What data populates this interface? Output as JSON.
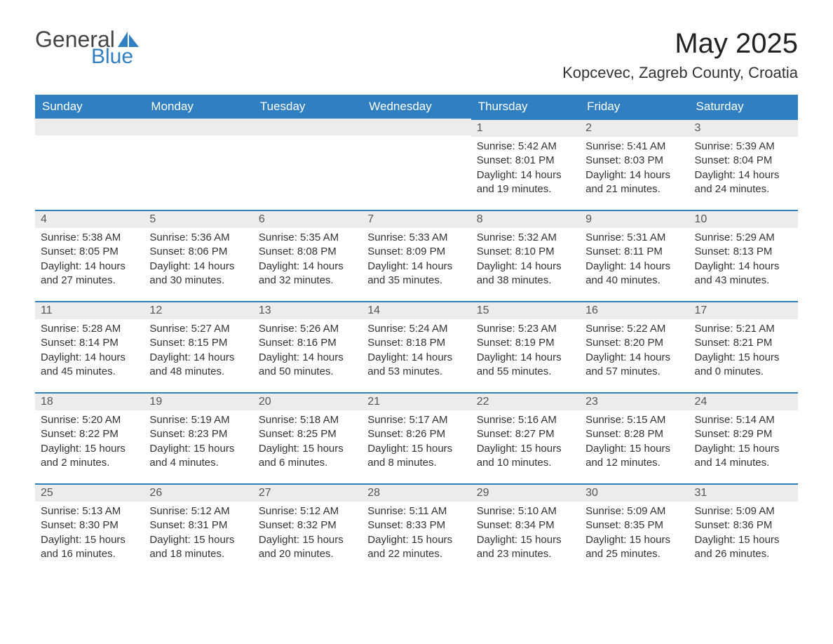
{
  "logo": {
    "word1": "General",
    "word2": "Blue"
  },
  "title": "May 2025",
  "location": "Kopcevec, Zagreb County, Croatia",
  "colors": {
    "header_bg": "#2f7fc1",
    "header_text": "#ffffff",
    "daynum_bg": "#ececec",
    "daynum_border": "#2f7fc1",
    "body_text": "#333333",
    "logo_blue": "#2f7fc1",
    "logo_gray": "#444444"
  },
  "typography": {
    "title_fontsize": 40,
    "location_fontsize": 22,
    "header_fontsize": 17,
    "daynum_fontsize": 16,
    "body_fontsize": 15
  },
  "days_of_week": [
    "Sunday",
    "Monday",
    "Tuesday",
    "Wednesday",
    "Thursday",
    "Friday",
    "Saturday"
  ],
  "weeks": [
    [
      null,
      null,
      null,
      null,
      {
        "n": "1",
        "sr": "5:42 AM",
        "ss": "8:01 PM",
        "dl": "14 hours and 19 minutes."
      },
      {
        "n": "2",
        "sr": "5:41 AM",
        "ss": "8:03 PM",
        "dl": "14 hours and 21 minutes."
      },
      {
        "n": "3",
        "sr": "5:39 AM",
        "ss": "8:04 PM",
        "dl": "14 hours and 24 minutes."
      }
    ],
    [
      {
        "n": "4",
        "sr": "5:38 AM",
        "ss": "8:05 PM",
        "dl": "14 hours and 27 minutes."
      },
      {
        "n": "5",
        "sr": "5:36 AM",
        "ss": "8:06 PM",
        "dl": "14 hours and 30 minutes."
      },
      {
        "n": "6",
        "sr": "5:35 AM",
        "ss": "8:08 PM",
        "dl": "14 hours and 32 minutes."
      },
      {
        "n": "7",
        "sr": "5:33 AM",
        "ss": "8:09 PM",
        "dl": "14 hours and 35 minutes."
      },
      {
        "n": "8",
        "sr": "5:32 AM",
        "ss": "8:10 PM",
        "dl": "14 hours and 38 minutes."
      },
      {
        "n": "9",
        "sr": "5:31 AM",
        "ss": "8:11 PM",
        "dl": "14 hours and 40 minutes."
      },
      {
        "n": "10",
        "sr": "5:29 AM",
        "ss": "8:13 PM",
        "dl": "14 hours and 43 minutes."
      }
    ],
    [
      {
        "n": "11",
        "sr": "5:28 AM",
        "ss": "8:14 PM",
        "dl": "14 hours and 45 minutes."
      },
      {
        "n": "12",
        "sr": "5:27 AM",
        "ss": "8:15 PM",
        "dl": "14 hours and 48 minutes."
      },
      {
        "n": "13",
        "sr": "5:26 AM",
        "ss": "8:16 PM",
        "dl": "14 hours and 50 minutes."
      },
      {
        "n": "14",
        "sr": "5:24 AM",
        "ss": "8:18 PM",
        "dl": "14 hours and 53 minutes."
      },
      {
        "n": "15",
        "sr": "5:23 AM",
        "ss": "8:19 PM",
        "dl": "14 hours and 55 minutes."
      },
      {
        "n": "16",
        "sr": "5:22 AM",
        "ss": "8:20 PM",
        "dl": "14 hours and 57 minutes."
      },
      {
        "n": "17",
        "sr": "5:21 AM",
        "ss": "8:21 PM",
        "dl": "15 hours and 0 minutes."
      }
    ],
    [
      {
        "n": "18",
        "sr": "5:20 AM",
        "ss": "8:22 PM",
        "dl": "15 hours and 2 minutes."
      },
      {
        "n": "19",
        "sr": "5:19 AM",
        "ss": "8:23 PM",
        "dl": "15 hours and 4 minutes."
      },
      {
        "n": "20",
        "sr": "5:18 AM",
        "ss": "8:25 PM",
        "dl": "15 hours and 6 minutes."
      },
      {
        "n": "21",
        "sr": "5:17 AM",
        "ss": "8:26 PM",
        "dl": "15 hours and 8 minutes."
      },
      {
        "n": "22",
        "sr": "5:16 AM",
        "ss": "8:27 PM",
        "dl": "15 hours and 10 minutes."
      },
      {
        "n": "23",
        "sr": "5:15 AM",
        "ss": "8:28 PM",
        "dl": "15 hours and 12 minutes."
      },
      {
        "n": "24",
        "sr": "5:14 AM",
        "ss": "8:29 PM",
        "dl": "15 hours and 14 minutes."
      }
    ],
    [
      {
        "n": "25",
        "sr": "5:13 AM",
        "ss": "8:30 PM",
        "dl": "15 hours and 16 minutes."
      },
      {
        "n": "26",
        "sr": "5:12 AM",
        "ss": "8:31 PM",
        "dl": "15 hours and 18 minutes."
      },
      {
        "n": "27",
        "sr": "5:12 AM",
        "ss": "8:32 PM",
        "dl": "15 hours and 20 minutes."
      },
      {
        "n": "28",
        "sr": "5:11 AM",
        "ss": "8:33 PM",
        "dl": "15 hours and 22 minutes."
      },
      {
        "n": "29",
        "sr": "5:10 AM",
        "ss": "8:34 PM",
        "dl": "15 hours and 23 minutes."
      },
      {
        "n": "30",
        "sr": "5:09 AM",
        "ss": "8:35 PM",
        "dl": "15 hours and 25 minutes."
      },
      {
        "n": "31",
        "sr": "5:09 AM",
        "ss": "8:36 PM",
        "dl": "15 hours and 26 minutes."
      }
    ]
  ],
  "labels": {
    "sunrise": "Sunrise: ",
    "sunset": "Sunset: ",
    "daylight": "Daylight: "
  }
}
